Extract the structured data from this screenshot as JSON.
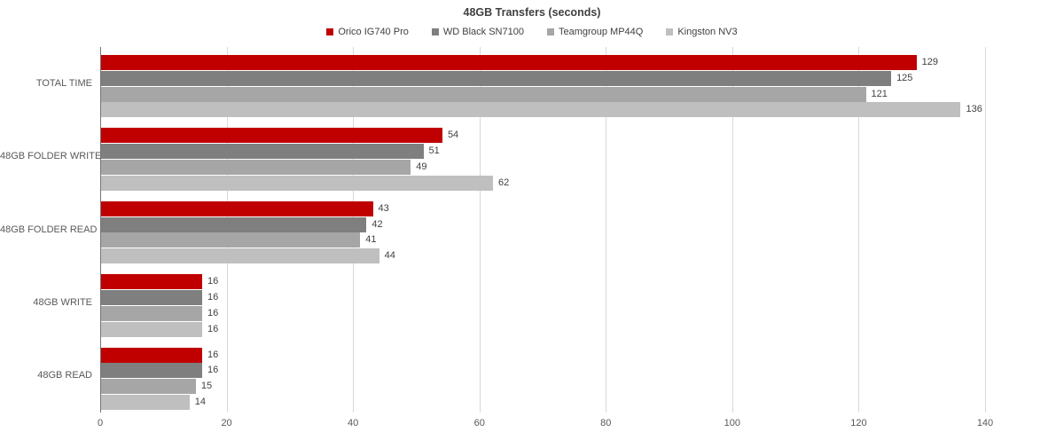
{
  "chart_data": {
    "type": "bar",
    "orientation": "horizontal",
    "title": "48GB Transfers (seconds)",
    "categories": [
      "TOTAL TIME",
      "48GB FOLDER WRITE",
      "48GB FOLDER READ",
      "48GB WRITE",
      "48GB READ"
    ],
    "series": [
      {
        "name": "Orico IG740 Pro",
        "color": "#c00000",
        "values": [
          129,
          54,
          43,
          16,
          16
        ]
      },
      {
        "name": "WD Black SN7100",
        "color": "#7f7f7f",
        "values": [
          125,
          51,
          42,
          16,
          16
        ]
      },
      {
        "name": "Teamgroup MP44Q",
        "color": "#a6a6a6",
        "values": [
          121,
          49,
          41,
          16,
          15
        ]
      },
      {
        "name": "Kingston NV3",
        "color": "#bfbfbf",
        "values": [
          136,
          62,
          44,
          16,
          14
        ]
      }
    ],
    "x_axis": {
      "min": 0,
      "max": 140,
      "tick_interval": 20,
      "ticks": [
        0,
        20,
        40,
        60,
        80,
        100,
        120,
        140
      ]
    },
    "grid": true,
    "legend_position": "top",
    "data_labels": true
  },
  "colors": {
    "background": "#ffffff",
    "title_text": "#404040",
    "value_label_text": "#404040",
    "category_label_text": "#595959",
    "tick_label_text": "#595959",
    "axis_line": "#757575",
    "gridline": "#d9d9d9"
  }
}
